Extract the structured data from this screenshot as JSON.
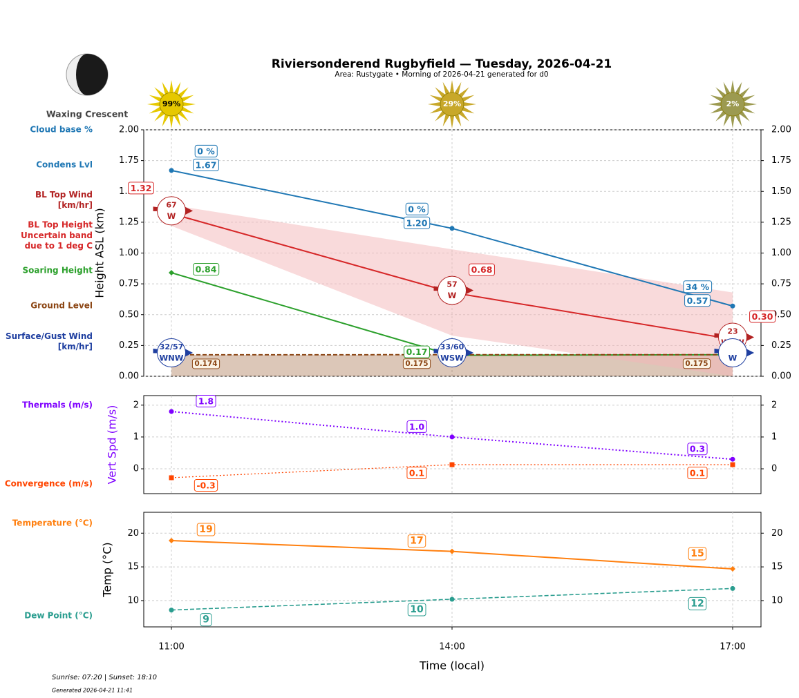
{
  "page": {
    "title": "Riviersonderend Rugbyfield — Tuesday, 2026-04-21",
    "subtitle": "Area: Rustygate • Morning of 2026-04-21 generated for d0",
    "moon_phase": "Waxing Crescent",
    "sun": [
      {
        "value": 99,
        "label": "99%",
        "color": "#e6c800",
        "text_color": "#000000"
      },
      {
        "value": 29,
        "label": "29%",
        "color": "#c8a82a",
        "text_color": "#ffffff"
      },
      {
        "value": 2,
        "label": "2%",
        "color": "#9c9a50",
        "text_color": "#ffffff"
      }
    ],
    "footer": "Sunrise: 07:20 | Sunset: 18:10",
    "generated": "Generated 2026-04-21 11:41",
    "xlabel": "Time (local)"
  },
  "chart_data": [
    {
      "type": "line",
      "ylabel": "Height ASL (km)",
      "ylim": [
        0,
        2
      ],
      "grid": true,
      "yticks": [
        {
          "value": 0,
          "label": "0.00"
        },
        {
          "value": 0.25,
          "label": "0.25"
        },
        {
          "value": 0.5,
          "label": "0.50"
        },
        {
          "value": 0.75,
          "label": "0.75"
        },
        {
          "value": 1,
          "label": "1.00"
        },
        {
          "value": 1.25,
          "label": "1.25"
        },
        {
          "value": 1.5,
          "label": "1.50"
        },
        {
          "value": 1.75,
          "label": "1.75"
        },
        {
          "value": 2,
          "label": "2.00"
        }
      ],
      "cloud_base": {
        "name": "Cloud base %",
        "color": "#1f77b4",
        "values": [
          0,
          0,
          34
        ],
        "value_labels": [
          "0 %",
          "0 %",
          "34 %"
        ]
      },
      "series": [
        {
          "name": "Condens Lvl",
          "color": "#1f77b4",
          "marker": "circle",
          "values": [
            1.67,
            1.2,
            0.57
          ],
          "value_labels": [
            "1.67",
            "1.20",
            "0.57"
          ]
        },
        {
          "name": "BL Top Height",
          "color": "#d62728",
          "marker": "none",
          "values": [
            1.32,
            0.68,
            0.3
          ],
          "value_labels": [
            "1.32",
            "0.68",
            "0.30"
          ]
        },
        {
          "name": "Soaring Height",
          "color": "#2ca02c",
          "marker": "diamond",
          "values": [
            0.84,
            0.17,
            0.175
          ],
          "value_labels": [
            "0.84",
            "0.17",
            null
          ]
        },
        {
          "name": "Ground Level",
          "color": "#8b4513",
          "marker": "none",
          "dashed": true,
          "values": [
            0.174,
            0.175,
            0.175
          ],
          "value_labels": [
            "0.174",
            "0.175",
            "0.175"
          ]
        }
      ],
      "band": {
        "name": "Uncertain band due to 1 deg C",
        "color": "#f4b6b8",
        "upper": [
          1.39,
          1.03,
          0.68
        ],
        "lower": [
          1.22,
          0.33,
          0
        ]
      },
      "winds": [
        {
          "name": "BL Top Wind [km/hr]",
          "color": "#b22222",
          "at": "series.1",
          "speeds": [
            67,
            57,
            23
          ],
          "dirs": [
            "W",
            "W",
            "WSW"
          ]
        },
        {
          "name": "Surface/Gust Wind [km/hr]",
          "color": "#1f3fa0",
          "at": "bottom",
          "speeds": [
            "32/57",
            "33/60",
            null
          ],
          "dirs": [
            "WNW",
            "WSW",
            "W"
          ]
        }
      ]
    },
    {
      "type": "line",
      "ylabel": "Vert Spd (m/s)",
      "ylabel_color": "#7f00ff",
      "ylim": [
        -0.78,
        2.3
      ],
      "yticks": [
        0,
        1,
        2
      ],
      "grid": true,
      "series": [
        {
          "name": "Thermals (m/s)",
          "color": "#7f00ff",
          "marker": "circle",
          "dotted": true,
          "width": 2,
          "values": [
            1.8,
            1.0,
            0.3
          ],
          "value_labels": [
            "1.8",
            "1.0",
            "0.3"
          ]
        },
        {
          "name": "Convergence (m/s)",
          "color": "#ff4500",
          "marker": "square",
          "dotted": true,
          "width": 1.3,
          "values": [
            -0.28,
            0.13,
            0.13
          ],
          "value_labels": [
            "-0.3",
            "0.1",
            "0.1"
          ]
        }
      ]
    },
    {
      "type": "line",
      "ylabel": "Temp (°C)",
      "ylim": [
        6.1,
        23.1
      ],
      "yticks": [
        10,
        15,
        20
      ],
      "grid": true,
      "categories": [
        "11:00",
        "14:00",
        "17:00"
      ],
      "series": [
        {
          "name": "Temperature (°C)",
          "color": "#ff7f0e",
          "marker": "diamond",
          "width": 2,
          "values": [
            18.9,
            17.3,
            14.7
          ],
          "value_labels": [
            "19",
            "17",
            "15"
          ]
        },
        {
          "name": "Dew Point (°C)",
          "color": "#2a9d8f",
          "marker": "circle",
          "dashed": true,
          "width": 1.6,
          "values": [
            8.6,
            10.2,
            11.8
          ],
          "value_labels": [
            "9",
            "10",
            "12"
          ]
        }
      ]
    }
  ]
}
